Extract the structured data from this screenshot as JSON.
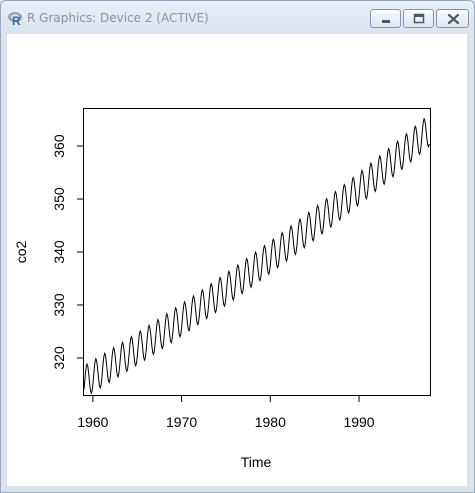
{
  "window": {
    "title": "R Graphics: Device 2 (ACTIVE)",
    "controls": [
      "minimize-icon",
      "maximize-icon",
      "close-icon"
    ],
    "title_color": "#8b949e"
  },
  "chart_data": {
    "type": "line",
    "title": "",
    "xlabel": "Time",
    "ylabel": "co2",
    "xlim": [
      1959,
      1998
    ],
    "ylim": [
      313,
      367
    ],
    "xticks": [
      1960,
      1970,
      1980,
      1990
    ],
    "yticks": [
      320,
      330,
      340,
      350,
      360
    ],
    "grid": false,
    "series": [
      {
        "start": 1959,
        "end": 1997.917,
        "frequency": 12,
        "seasonal_amplitude": 3,
        "trend_start": 315.5,
        "trend_end": 363,
        "color": "#000000"
      }
    ]
  }
}
